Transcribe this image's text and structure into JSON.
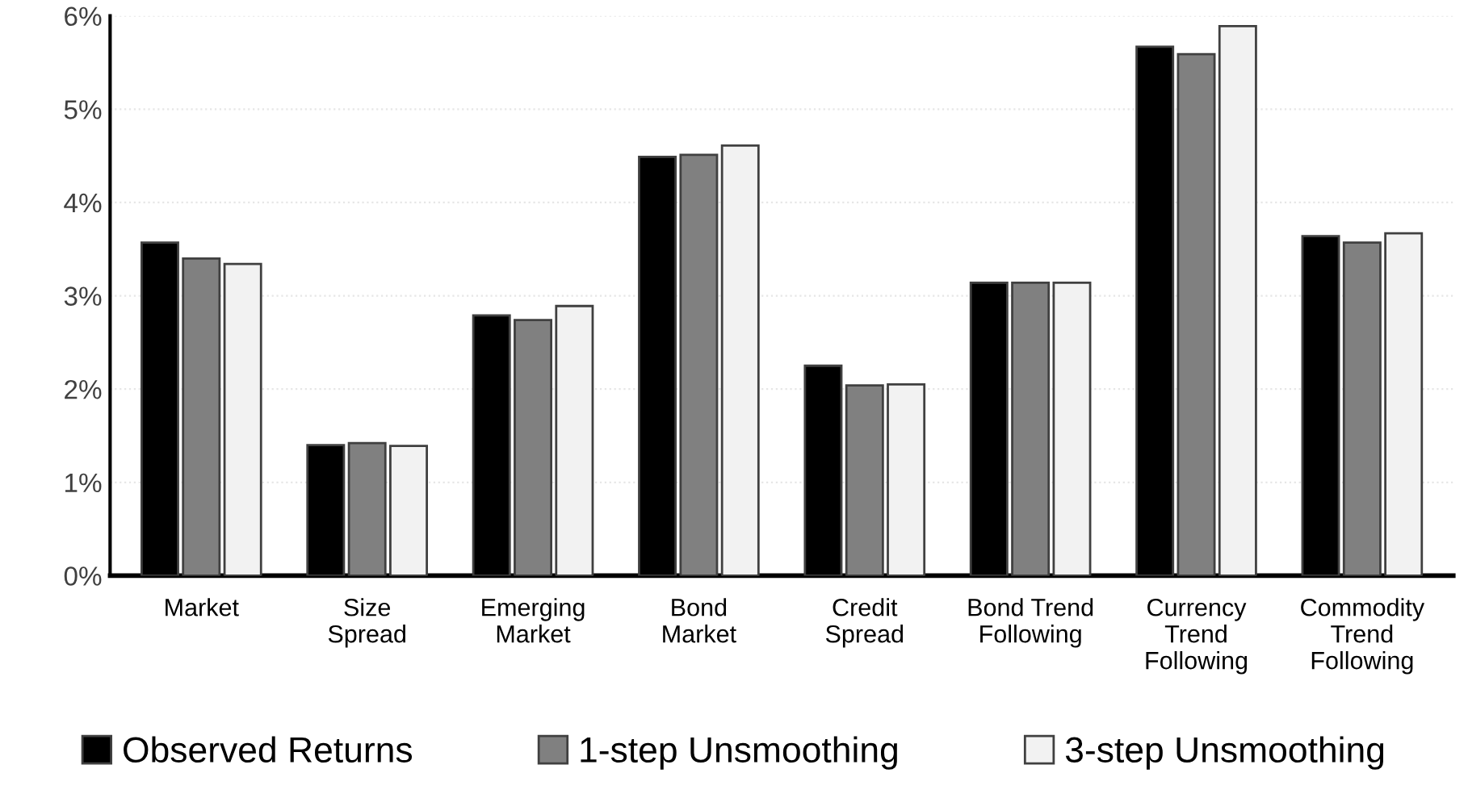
{
  "chart_data": {
    "type": "bar",
    "categories": [
      "Market",
      "Size\nSpread",
      "Emerging\nMarket",
      "Bond\nMarket",
      "Credit\nSpread",
      "Bond Trend\nFollowing",
      "Currency\nTrend\nFollowing",
      "Commodity\nTrend\nFollowing"
    ],
    "series": [
      {
        "name": "Observed Returns",
        "color": "#000000",
        "values": [
          3.57,
          1.4,
          2.79,
          4.49,
          2.25,
          3.14,
          5.67,
          3.64
        ]
      },
      {
        "name": "1-step Unsmoothing",
        "color": "#808080",
        "values": [
          3.4,
          1.42,
          2.74,
          4.51,
          2.04,
          3.14,
          5.59,
          3.57
        ]
      },
      {
        "name": "3-step Unsmoothing",
        "color": "#f2f2f2",
        "values": [
          3.34,
          1.39,
          2.89,
          4.61,
          2.05,
          3.14,
          5.89,
          3.67
        ]
      }
    ],
    "ylim": [
      0,
      6
    ],
    "yticks": [
      {
        "value": 0,
        "label": "0%"
      },
      {
        "value": 1,
        "label": "1%"
      },
      {
        "value": 2,
        "label": "2%"
      },
      {
        "value": 3,
        "label": "3%"
      },
      {
        "value": 4,
        "label": "4%"
      },
      {
        "value": 5,
        "label": "5%"
      },
      {
        "value": 6,
        "label": "6%"
      }
    ],
    "grid": "y",
    "legend": "bottom"
  }
}
